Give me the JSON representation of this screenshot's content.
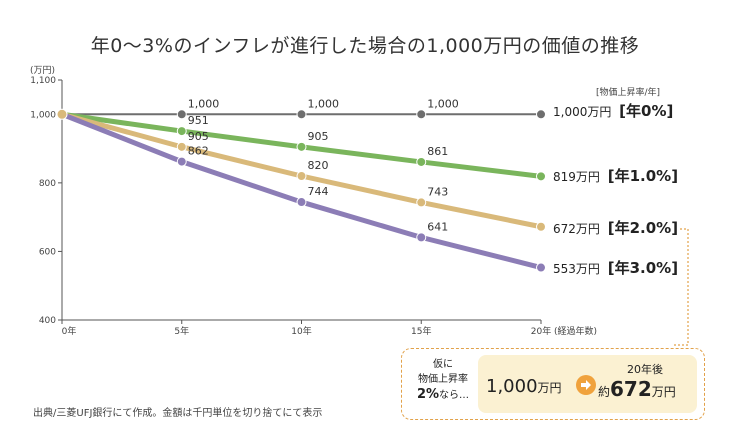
{
  "title": "年0〜3%のインフレが進行した場合の1,000万円の価値の推移",
  "source": "出典/三菱UFJ銀行にて作成。金額は千円単位を切り捨てにて表示",
  "chart_data": {
    "type": "line",
    "ylabel": "(万円)",
    "xlabel": "(経過年数)",
    "legend_title": "[物価上昇率/年]",
    "x": [
      0,
      5,
      10,
      15,
      20
    ],
    "x_tick_labels": [
      "0年",
      "5年",
      "10年",
      "15年",
      "20年"
    ],
    "y_ticks": [
      "1,100",
      "1,000",
      "800",
      "600",
      "400"
    ],
    "y_tick_values": [
      1100,
      1000,
      800,
      600,
      400
    ],
    "ylim": [
      400,
      1100
    ],
    "grid": false,
    "series": [
      {
        "name": "年0%",
        "color": "#6e6e6e",
        "values": [
          1000,
          1000,
          1000,
          1000,
          1000
        ],
        "point_labels": [
          "",
          "1,000",
          "1,000",
          "1,000",
          ""
        ],
        "end_value": "1,000万円",
        "end_rate": "[年0%]"
      },
      {
        "name": "年1.0%",
        "color": "#7ab55c",
        "values": [
          1000,
          951,
          905,
          861,
          819
        ],
        "point_labels": [
          "",
          "951",
          "905",
          "861",
          ""
        ],
        "end_value": "819万円",
        "end_rate": "[年1.0%]"
      },
      {
        "name": "年2.0%",
        "color": "#d9b97a",
        "values": [
          1000,
          905,
          820,
          743,
          672
        ],
        "point_labels": [
          "",
          "905",
          "820",
          "743",
          ""
        ],
        "end_value": "672万円",
        "end_rate": "[年2.0%]"
      },
      {
        "name": "年3.0%",
        "color": "#8c7db6",
        "values": [
          1000,
          862,
          744,
          641,
          553
        ],
        "point_labels": [
          "",
          "862",
          "744",
          "641",
          ""
        ],
        "end_value": "553万円",
        "end_rate": "[年3.0%]"
      }
    ]
  },
  "callout": {
    "line1": "仮に",
    "line2": "物価上昇率",
    "rate": "2%",
    "line3": "なら…",
    "from_number": "1,000",
    "from_unit": "万円",
    "after_label": "20年後",
    "after_prefix": "約",
    "after_number": "672",
    "after_unit": "万円",
    "arrow_color": "#f0a23c",
    "border_color": "#e2a24a"
  }
}
